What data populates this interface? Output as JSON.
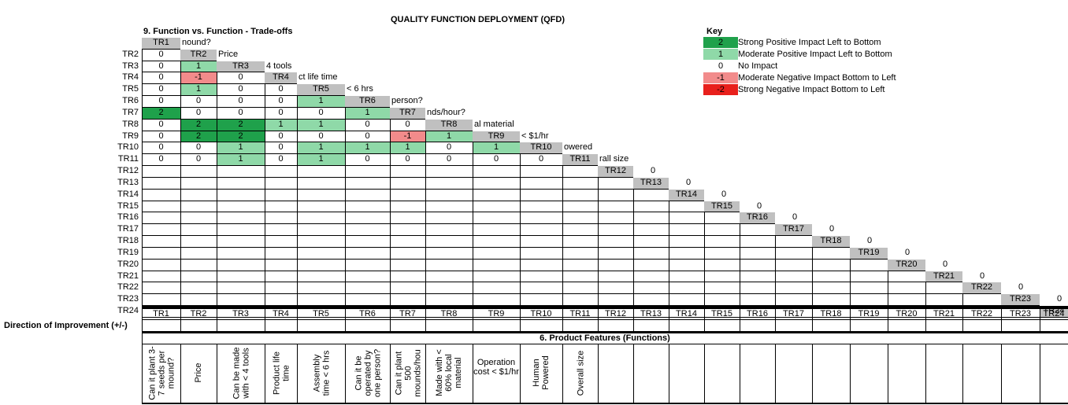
{
  "title": "QUALITY FUNCTION DEPLOYMENT (QFD)",
  "section9_title": "9. Function vs. Function - Trade-offs",
  "section6_title": "6.  Product Features (Functions)",
  "direction_label": "Direction of Improvement (+/-)",
  "key": {
    "title": "Key",
    "items": [
      {
        "value": "2",
        "label": "Strong Positive Impact Left to Bottom",
        "color": "#1fa14b"
      },
      {
        "value": "1",
        "label": "Moderate Positive Impact Left to Bottom",
        "color": "#8fd9a8"
      },
      {
        "value": "0",
        "label": "No Impact",
        "color": "#ffffff"
      },
      {
        "value": "-1",
        "label": "Moderate Negative Impact Bottom to Left",
        "color": "#f28b8b"
      },
      {
        "value": "-2",
        "label": "Strong Negative Impact Bottom to Left",
        "color": "#e8201c"
      }
    ]
  },
  "row_labels": [
    "TR2",
    "TR3",
    "TR4",
    "TR5",
    "TR6",
    "TR7",
    "TR8",
    "TR9",
    "TR10",
    "TR11",
    "TR12",
    "TR13",
    "TR14",
    "TR15",
    "TR16",
    "TR17",
    "TR18",
    "TR19",
    "TR20",
    "TR21",
    "TR22",
    "TR23",
    "TR24"
  ],
  "col_labels": [
    "TR1",
    "TR2",
    "TR3",
    "TR4",
    "TR5",
    "TR6",
    "TR7",
    "TR8",
    "TR9",
    "TR10",
    "TR11",
    "TR12",
    "TR13",
    "TR14",
    "TR15",
    "TR16",
    "TR17",
    "TR18",
    "TR19",
    "TR20",
    "TR21",
    "TR22",
    "TR23",
    "TR24"
  ],
  "diag_text": [
    "nound?",
    "Price",
    "4 tools",
    "ct life time",
    "< 6 hrs",
    "person?",
    "nds/hour?",
    "al material",
    "< $1/hr",
    "owered",
    "rall size",
    "0",
    "0",
    "0",
    "0",
    "0",
    "0",
    "0",
    "0",
    "0",
    "0",
    "0",
    "0"
  ],
  "matrix": [
    [
      "0"
    ],
    [
      "0",
      "1"
    ],
    [
      "0",
      "-1",
      "0"
    ],
    [
      "0",
      "1",
      "0",
      "0"
    ],
    [
      "0",
      "0",
      "0",
      "0",
      "1"
    ],
    [
      "2",
      "0",
      "0",
      "0",
      "0",
      "1"
    ],
    [
      "0",
      "2",
      "2",
      "1",
      "1",
      "0",
      "0"
    ],
    [
      "0",
      "2",
      "2",
      "0",
      "0",
      "0",
      "-1",
      "1"
    ],
    [
      "0",
      "0",
      "1",
      "0",
      "1",
      "1",
      "1",
      "0",
      "1"
    ],
    [
      "0",
      "0",
      "1",
      "0",
      "1",
      "0",
      "0",
      "0",
      "0",
      "0"
    ]
  ],
  "features": [
    "Can it plant 3-7 seeds per mound?",
    "Price",
    "Can be made with < 4 tools",
    "Product life time",
    "Assembly time < 6 hrs",
    "Can it be operated by one person?",
    "Can it plant 500 mounds/hou",
    "Made with < 60% local material",
    "Operation cost < $1/hr",
    "Human Powered",
    "Overall size"
  ]
}
